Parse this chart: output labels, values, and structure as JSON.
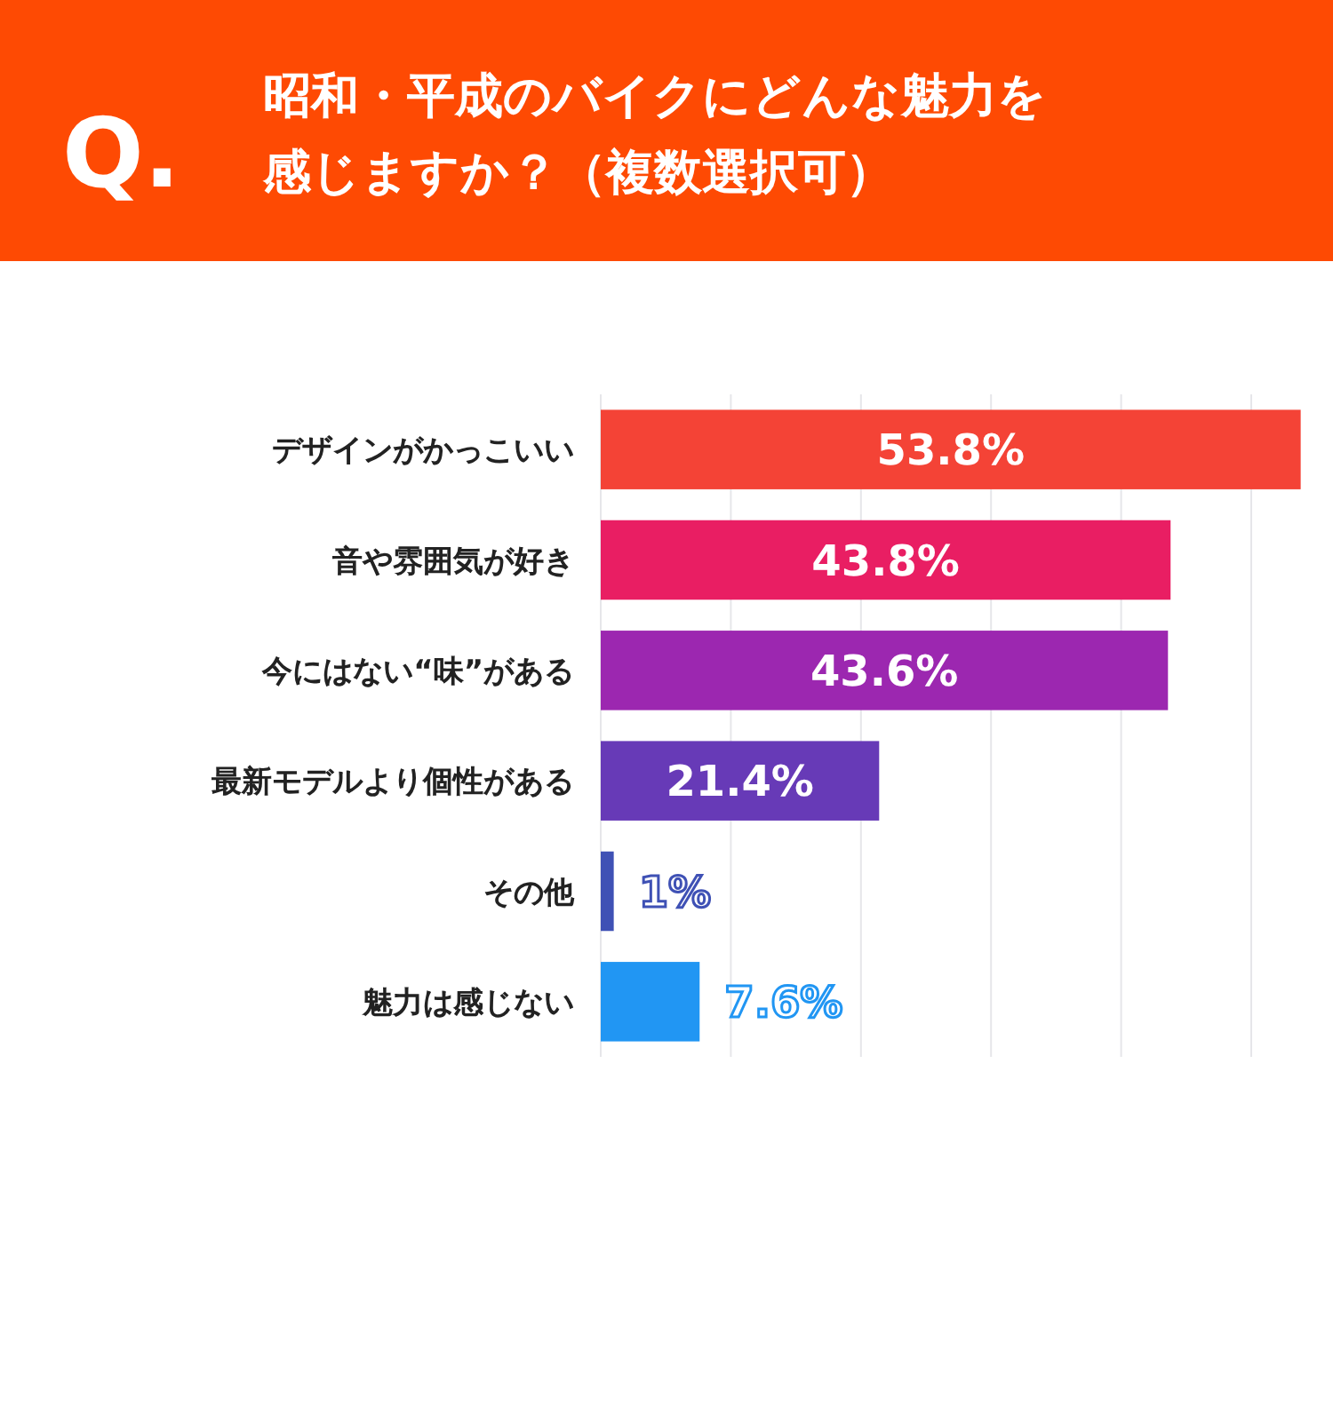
{
  "chart_data": {
    "type": "bar",
    "orientation": "horizontal",
    "title": "昭和・平成のバイクにどんな魅力を感じますか？（複数選択可）",
    "annotations": [
      "Q."
    ],
    "categories": [
      "デザインがかっこいい",
      "音や雰囲気が好き",
      "今にはない“味”がある",
      "最新モデルより個性がある",
      "その他",
      "魅力は感じない"
    ],
    "values": [
      53.8,
      43.8,
      43.6,
      21.4,
      1,
      7.6
    ],
    "colors": [
      "#f44336",
      "#e91e63",
      "#9c27b0",
      "#673ab7",
      "#3f51b5",
      "#2196f3"
    ],
    "value_labels": [
      "53.8%",
      "43.8%",
      "43.6%",
      "21.4%",
      "1%",
      "7.6%"
    ],
    "xticks": [
      {
        "value": 0,
        "label": null
      },
      {
        "value": 10,
        "label": null
      },
      {
        "value": 20,
        "label": null
      },
      {
        "value": 30,
        "label": null
      },
      {
        "value": 40,
        "label": null
      },
      {
        "value": 50,
        "label": null
      }
    ],
    "grid": "x",
    "tick_labels": "y"
  }
}
